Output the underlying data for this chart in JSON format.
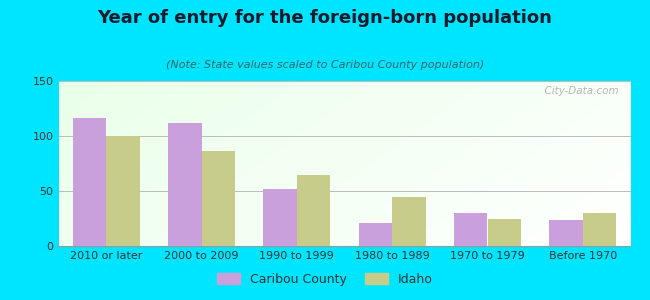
{
  "title": "Year of entry for the foreign-born population",
  "subtitle": "(Note: State values scaled to Caribou County population)",
  "categories": [
    "2010 or later",
    "2000 to 2009",
    "1990 to 1999",
    "1980 to 1989",
    "1970 to 1979",
    "Before 1970"
  ],
  "caribou_values": [
    116,
    112,
    52,
    21,
    30,
    24
  ],
  "idaho_values": [
    100,
    86,
    65,
    45,
    25,
    30
  ],
  "caribou_color": "#c9a0dc",
  "idaho_color": "#c8cc8a",
  "background_outer": "#00e5ff",
  "ylim": [
    0,
    150
  ],
  "yticks": [
    0,
    50,
    100,
    150
  ],
  "bar_width": 0.35,
  "title_fontsize": 13,
  "subtitle_fontsize": 8,
  "legend_fontsize": 9,
  "tick_fontsize": 8,
  "watermark": "  City-Data.com"
}
